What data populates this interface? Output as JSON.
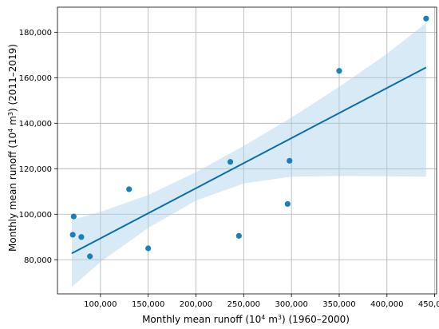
{
  "chart_data": {
    "type": "scatter",
    "xlabel": {
      "prefix": "Monthly mean runoff (10",
      "sup": "4",
      "mid": " m",
      "sup2": "3",
      "suffix": ") (1960–2000)"
    },
    "ylabel": {
      "prefix": "Monthly mean runoff (10",
      "sup": "4",
      "mid": " m",
      "sup2": "3",
      "suffix": ") (2011–2019)"
    },
    "xlim": [
      55000,
      452000
    ],
    "ylim": [
      65000,
      191000
    ],
    "x_ticks": [
      {
        "value": 100000,
        "label": "100,000"
      },
      {
        "value": 150000,
        "label": "150,000"
      },
      {
        "value": 200000,
        "label": "200,000"
      },
      {
        "value": 250000,
        "label": "250,000"
      },
      {
        "value": 300000,
        "label": "300,000"
      },
      {
        "value": 350000,
        "label": "350,000"
      },
      {
        "value": 400000,
        "label": "400,000"
      },
      {
        "value": 450000,
        "label": "450,000"
      }
    ],
    "y_ticks": [
      {
        "value": 80000,
        "label": "80,000"
      },
      {
        "value": 100000,
        "label": "100,000"
      },
      {
        "value": 120000,
        "label": "120,000"
      },
      {
        "value": 140000,
        "label": "140,000"
      },
      {
        "value": 160000,
        "label": "160,000"
      },
      {
        "value": 180000,
        "label": "180,000"
      }
    ],
    "grid": true,
    "points": [
      {
        "x": 71000,
        "y": 91000
      },
      {
        "x": 72000,
        "y": 99000
      },
      {
        "x": 80000,
        "y": 90000
      },
      {
        "x": 89000,
        "y": 81500
      },
      {
        "x": 130000,
        "y": 111000
      },
      {
        "x": 150000,
        "y": 85000
      },
      {
        "x": 236000,
        "y": 123000
      },
      {
        "x": 245000,
        "y": 90500
      },
      {
        "x": 296000,
        "y": 104500
      },
      {
        "x": 298000,
        "y": 123500
      },
      {
        "x": 350000,
        "y": 163000
      },
      {
        "x": 441000,
        "y": 186000
      }
    ],
    "regression_line": [
      {
        "x": 70000,
        "y": 82800
      },
      {
        "x": 441000,
        "y": 164500
      }
    ],
    "confidence_band": {
      "upper": [
        {
          "x": 70000,
          "y": 97500
        },
        {
          "x": 100000,
          "y": 101000
        },
        {
          "x": 150000,
          "y": 108500
        },
        {
          "x": 200000,
          "y": 118500
        },
        {
          "x": 250000,
          "y": 130000
        },
        {
          "x": 300000,
          "y": 142500
        },
        {
          "x": 350000,
          "y": 156000
        },
        {
          "x": 400000,
          "y": 170500
        },
        {
          "x": 441000,
          "y": 184000
        }
      ],
      "lower": [
        {
          "x": 70000,
          "y": 68000
        },
        {
          "x": 100000,
          "y": 79000
        },
        {
          "x": 150000,
          "y": 94000
        },
        {
          "x": 200000,
          "y": 106000
        },
        {
          "x": 250000,
          "y": 113500
        },
        {
          "x": 300000,
          "y": 116500
        },
        {
          "x": 350000,
          "y": 116800
        },
        {
          "x": 400000,
          "y": 116700
        },
        {
          "x": 441000,
          "y": 116500
        }
      ]
    },
    "colors": {
      "point": "#1a80bb",
      "line": "#0b6ea8",
      "band": "#a8d0ec"
    }
  }
}
